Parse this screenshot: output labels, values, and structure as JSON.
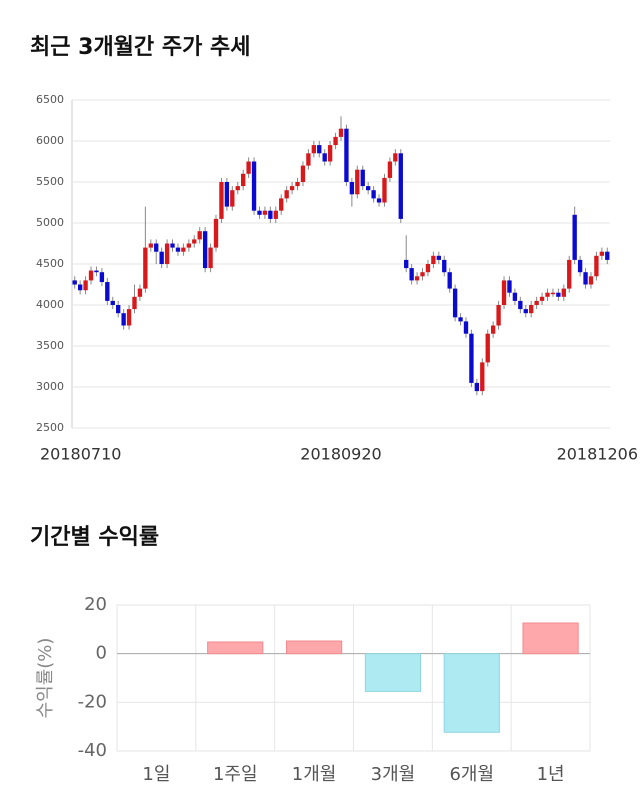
{
  "chart_data": [
    {
      "type": "candlestick",
      "title": "최근 3개월간 주가 추세",
      "categories": [
        "20180710",
        null,
        null,
        null,
        null,
        null,
        null,
        null,
        null,
        null,
        null,
        null,
        null,
        null,
        null,
        null,
        null,
        null,
        null,
        null,
        null,
        null,
        null,
        null,
        null,
        null,
        null,
        null,
        null,
        null,
        null,
        null,
        null,
        null,
        null,
        null,
        null,
        null,
        null,
        null,
        null,
        null,
        null,
        null,
        null,
        null,
        null,
        null,
        null,
        "20180920",
        null,
        null,
        null,
        null,
        null,
        null,
        null,
        null,
        null,
        null,
        null,
        null,
        null,
        null,
        null,
        null,
        null,
        null,
        null,
        null,
        null,
        null,
        null,
        null,
        null,
        null,
        null,
        null,
        null,
        null,
        null,
        null,
        null,
        null,
        null,
        null,
        null,
        null,
        null,
        null,
        null,
        null,
        null,
        null,
        null,
        null,
        null,
        null,
        "20181206"
      ],
      "open": [
        4300,
        4250,
        4180,
        4300,
        4420,
        4400,
        4280,
        4050,
        4000,
        3900,
        3750,
        3950,
        4100,
        4200,
        4700,
        4750,
        4650,
        4500,
        4750,
        4700,
        4650,
        4700,
        4750,
        4800,
        4900,
        4450,
        4700,
        5050,
        5500,
        5200,
        5400,
        5450,
        5600,
        5750,
        5150,
        5100,
        5150,
        5050,
        5150,
        5300,
        5400,
        5450,
        5500,
        5700,
        5850,
        5950,
        5850,
        5750,
        5950,
        6050,
        6150,
        5500,
        5350,
        5650,
        5450,
        5400,
        5300,
        5250,
        5550,
        5750,
        5850,
        4550,
        4450,
        4300,
        4350,
        4400,
        4500,
        4600,
        4550,
        4400,
        4200,
        3850,
        3800,
        3650,
        3050,
        2950,
        3300,
        3650,
        3750,
        4000,
        4300,
        4150,
        4050,
        3950,
        3900,
        4000,
        4050,
        4100,
        4150,
        4150,
        4100,
        4200,
        5100,
        4550,
        4400,
        4250,
        4350,
        4600,
        4650
      ],
      "high": [
        4350,
        4300,
        4350,
        4470,
        4470,
        4450,
        4330,
        4100,
        4050,
        3950,
        4000,
        4250,
        4250,
        5200,
        4800,
        4800,
        4700,
        4800,
        4800,
        4750,
        4750,
        4800,
        4850,
        4950,
        4950,
        4750,
        5100,
        5550,
        5550,
        5450,
        5500,
        5650,
        5800,
        5800,
        5200,
        5200,
        5200,
        5200,
        5350,
        5450,
        5500,
        5550,
        5750,
        5900,
        6000,
        6000,
        5900,
        6000,
        6100,
        6300,
        6200,
        5550,
        5700,
        5700,
        5500,
        5450,
        5350,
        5600,
        5800,
        5900,
        5900,
        4850,
        4500,
        4400,
        4450,
        4550,
        4650,
        4650,
        4600,
        4450,
        4250,
        3900,
        3850,
        3700,
        3100,
        3350,
        3700,
        3800,
        4050,
        4350,
        4350,
        4200,
        4100,
        4000,
        4050,
        4100,
        4150,
        4200,
        4200,
        4200,
        4250,
        4600,
        5200,
        4600,
        4450,
        4400,
        4650,
        4700,
        4700
      ],
      "low": [
        4200,
        4130,
        4130,
        4250,
        4350,
        4230,
        4000,
        3950,
        3850,
        3700,
        3700,
        3900,
        4050,
        4150,
        4650,
        4500,
        4450,
        4450,
        4650,
        4600,
        4600,
        4650,
        4700,
        4750,
        4400,
        4400,
        4650,
        5000,
        5150,
        5150,
        5350,
        5400,
        5550,
        5100,
        5050,
        5050,
        5000,
        5000,
        5100,
        5250,
        5350,
        5400,
        5450,
        5650,
        5800,
        5800,
        5700,
        5700,
        5900,
        6000,
        5450,
        5200,
        5300,
        5400,
        5350,
        5250,
        5200,
        5200,
        5500,
        5700,
        5000,
        4400,
        4250,
        4250,
        4300,
        4350,
        4450,
        4500,
        4350,
        4150,
        3800,
        3750,
        3600,
        3000,
        2900,
        2900,
        3250,
        3600,
        3700,
        3950,
        4100,
        4000,
        3900,
        3850,
        3850,
        3950,
        4000,
        4050,
        4100,
        4050,
        4050,
        4150,
        4500,
        4350,
        4200,
        4200,
        4300,
        4550,
        4500
      ],
      "close": [
        4250,
        4180,
        4300,
        4420,
        4400,
        4280,
        4050,
        4000,
        3900,
        3750,
        3950,
        4100,
        4200,
        4700,
        4750,
        4650,
        4500,
        4750,
        4700,
        4650,
        4700,
        4750,
        4800,
        4900,
        4450,
        4700,
        5050,
        5500,
        5200,
        5400,
        5450,
        5600,
        5750,
        5150,
        5100,
        5150,
        5050,
        5150,
        5300,
        5400,
        5450,
        5500,
        5700,
        5850,
        5950,
        5850,
        5750,
        5950,
        6050,
        6150,
        5500,
        5350,
        5650,
        5450,
        5400,
        5300,
        5250,
        5550,
        5750,
        5850,
        5050,
        4450,
        4300,
        4350,
        4400,
        4500,
        4600,
        4550,
        4400,
        4200,
        3850,
        3800,
        3650,
        3050,
        2950,
        3300,
        3650,
        3750,
        4000,
        4300,
        4150,
        4050,
        3950,
        3900,
        4000,
        4050,
        4100,
        4150,
        4150,
        4100,
        4200,
        4550,
        4550,
        4400,
        4250,
        4350,
        4600,
        4650,
        4550
      ],
      "up_color": "#d7191c",
      "down_color": "#0a0ad0",
      "ylim": [
        2500,
        6500
      ],
      "yticks": [
        2500,
        3000,
        3500,
        4000,
        4500,
        5000,
        5500,
        6000,
        6500
      ],
      "grid": true
    },
    {
      "type": "bar",
      "title": "기간별 수익률",
      "y_label": "수익률(%)",
      "categories": [
        "1일",
        "1주일",
        "1개월",
        "3개월",
        "6개월",
        "1년"
      ],
      "values": [
        0,
        4.8,
        5.2,
        -15.5,
        -32.3,
        12.6
      ],
      "positive_color": "#ffa8ac",
      "negative_color": "#aeeaf2",
      "ylim": [
        -40,
        20
      ],
      "yticks": [
        -40,
        -20,
        0,
        20
      ],
      "grid": true
    }
  ]
}
